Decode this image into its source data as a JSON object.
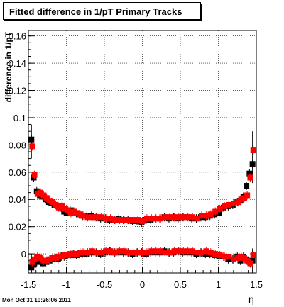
{
  "chart_data": {
    "type": "scatter",
    "title": "Fitted difference in 1/pT  Primary Tracks",
    "xlabel": "η",
    "ylabel": "difference in 1/pT",
    "xlim": [
      -1.5,
      1.5
    ],
    "ylim": [
      -0.014,
      0.164
    ],
    "xticks": [
      -1.5,
      -1,
      -0.5,
      0,
      0.5,
      1,
      1.5
    ],
    "xtick_labels": [
      "-1.5",
      "-1",
      "-0.5",
      "0",
      "0.5",
      "1",
      "1.5"
    ],
    "yticks": [
      0,
      0.02,
      0.04,
      0.06,
      0.08,
      0.1,
      0.12,
      0.14,
      0.16
    ],
    "ytick_labels": [
      "0",
      "0.02",
      "0.04",
      "0.06",
      "0.08",
      "0.1",
      "0.12",
      "0.14",
      "0.16"
    ],
    "grid": true,
    "colors": {
      "black_series": "#000000",
      "red_series": "#ff0000"
    },
    "series": [
      {
        "color": "black",
        "marker": "square",
        "x": [
          -1.46,
          -1.43,
          -1.39,
          -1.35,
          -1.31,
          -1.27,
          -1.23,
          -1.19,
          -1.15,
          -1.11,
          -1.07,
          -1.03,
          -0.99,
          -0.95,
          -0.91,
          -0.87,
          -0.83,
          -0.79,
          -0.73,
          -0.67,
          -0.61,
          -0.55,
          -0.49,
          -0.43,
          -0.37,
          -0.31,
          -0.25,
          -0.19,
          -0.13,
          -0.07,
          -0.01,
          0.05,
          0.11,
          0.17,
          0.23,
          0.29,
          0.35,
          0.41,
          0.47,
          0.53,
          0.59,
          0.65,
          0.71,
          0.77,
          0.83,
          0.89,
          0.95,
          1.01,
          1.07,
          1.13,
          1.19,
          1.25,
          1.29,
          1.33,
          1.37,
          1.41,
          1.45
        ],
        "y": [
          0.084,
          0.056,
          0.046,
          0.043,
          0.042,
          0.04,
          0.038,
          0.037,
          0.036,
          0.035,
          0.034,
          0.031,
          0.03,
          0.032,
          0.031,
          0.03,
          0.029,
          0.028,
          0.028,
          0.028,
          0.027,
          0.026,
          0.026,
          0.025,
          0.025,
          0.026,
          0.025,
          0.025,
          0.024,
          0.024,
          0.023,
          0.025,
          0.025,
          0.026,
          0.026,
          0.027,
          0.026,
          0.027,
          0.026,
          0.027,
          0.027,
          0.026,
          0.026,
          0.027,
          0.027,
          0.028,
          0.029,
          0.03,
          0.034,
          0.035,
          0.036,
          0.038,
          0.039,
          0.042,
          0.05,
          0.059,
          0.066
        ],
        "x2": [
          -1.46,
          -1.43,
          -1.39,
          -1.35,
          -1.31,
          -1.27,
          -1.23,
          -1.19,
          -1.15,
          -1.11,
          -1.07,
          -1.03,
          -0.99,
          -0.95,
          -0.91,
          -0.87,
          -0.83,
          -0.79,
          -0.73,
          -0.67,
          -0.61,
          -0.55,
          -0.49,
          -0.43,
          -0.37,
          -0.31,
          -0.25,
          -0.19,
          -0.13,
          -0.07,
          -0.01,
          0.05,
          0.11,
          0.17,
          0.23,
          0.29,
          0.35,
          0.41,
          0.47,
          0.53,
          0.59,
          0.65,
          0.71,
          0.77,
          0.83,
          0.89,
          0.95,
          1.01,
          1.07,
          1.13,
          1.19,
          1.25,
          1.29,
          1.33,
          1.37,
          1.41,
          1.45
        ],
        "y2": [
          -0.01,
          -0.008,
          -0.006,
          -0.005,
          -0.007,
          -0.006,
          -0.005,
          -0.004,
          -0.004,
          -0.004,
          -0.002,
          -0.002,
          -0.001,
          -0.001,
          0.0,
          -0.001,
          0.0,
          0.0,
          0.0,
          0.001,
          0.001,
          0.0,
          0.001,
          0.002,
          0.001,
          0.001,
          0.001,
          0.001,
          0.0,
          0.001,
          0.001,
          0.0,
          0.001,
          0.001,
          0.001,
          0.002,
          0.001,
          0.001,
          0.002,
          0.001,
          0.001,
          0.001,
          0.0,
          0.001,
          0.0,
          0.0,
          -0.001,
          -0.002,
          -0.002,
          -0.004,
          -0.004,
          -0.002,
          -0.005,
          -0.002,
          -0.004,
          -0.006,
          -0.005
        ]
      },
      {
        "color": "red",
        "marker": "square",
        "x": [
          -1.45,
          -1.42,
          -1.38,
          -1.34,
          -1.3,
          -1.26,
          -1.22,
          -1.18,
          -1.14,
          -1.1,
          -1.06,
          -1.02,
          -0.98,
          -0.94,
          -0.9,
          -0.86,
          -0.82,
          -0.78,
          -0.72,
          -0.66,
          -0.6,
          -0.54,
          -0.48,
          -0.42,
          -0.36,
          -0.3,
          -0.24,
          -0.18,
          -0.12,
          -0.06,
          0.0,
          0.06,
          0.12,
          0.18,
          0.24,
          0.3,
          0.36,
          0.42,
          0.48,
          0.54,
          0.6,
          0.66,
          0.72,
          0.78,
          0.84,
          0.9,
          0.96,
          1.02,
          1.08,
          1.14,
          1.2,
          1.26,
          1.3,
          1.34,
          1.38,
          1.42,
          1.46
        ],
        "y": [
          0.079,
          0.058,
          0.044,
          0.045,
          0.043,
          0.041,
          0.039,
          0.038,
          0.036,
          0.034,
          0.035,
          0.033,
          0.032,
          0.03,
          0.031,
          0.03,
          0.029,
          0.028,
          0.027,
          0.027,
          0.027,
          0.027,
          0.026,
          0.026,
          0.025,
          0.025,
          0.025,
          0.025,
          0.025,
          0.025,
          0.024,
          0.026,
          0.026,
          0.026,
          0.026,
          0.027,
          0.027,
          0.027,
          0.027,
          0.027,
          0.027,
          0.027,
          0.026,
          0.028,
          0.028,
          0.029,
          0.031,
          0.033,
          0.035,
          0.036,
          0.037,
          0.038,
          0.04,
          0.041,
          0.043,
          0.056,
          0.076
        ],
        "x2": [
          -1.45,
          -1.42,
          -1.38,
          -1.34,
          -1.3,
          -1.26,
          -1.22,
          -1.18,
          -1.14,
          -1.1,
          -1.06,
          -1.02,
          -0.98,
          -0.94,
          -0.9,
          -0.86,
          -0.82,
          -0.78,
          -0.72,
          -0.66,
          -0.6,
          -0.54,
          -0.48,
          -0.42,
          -0.36,
          -0.3,
          -0.24,
          -0.18,
          -0.12,
          -0.06,
          0.0,
          0.06,
          0.12,
          0.18,
          0.24,
          0.3,
          0.36,
          0.42,
          0.48,
          0.54,
          0.6,
          0.66,
          0.72,
          0.78,
          0.84,
          0.9,
          0.96,
          1.02,
          1.08,
          1.14,
          1.2,
          1.26,
          1.3,
          1.34,
          1.38,
          1.42,
          1.46
        ],
        "y2": [
          -0.006,
          -0.004,
          -0.002,
          -0.003,
          -0.005,
          -0.005,
          -0.004,
          -0.003,
          -0.003,
          -0.002,
          -0.002,
          -0.001,
          -0.001,
          0.0,
          0.0,
          0.0,
          0.001,
          0.001,
          0.001,
          0.002,
          0.001,
          0.001,
          0.002,
          0.002,
          0.001,
          0.002,
          0.002,
          0.001,
          0.001,
          0.001,
          0.001,
          0.001,
          0.002,
          0.002,
          0.002,
          0.001,
          0.001,
          0.002,
          0.002,
          0.002,
          0.002,
          0.002,
          0.001,
          0.001,
          0.002,
          0.001,
          0.0,
          -0.001,
          -0.002,
          -0.002,
          -0.004,
          -0.003,
          -0.002,
          -0.003,
          -0.005,
          -0.007,
          -0.001
        ]
      }
    ]
  },
  "footer": {
    "timestamp": "Mon Oct 31 10:26:06 2011"
  }
}
